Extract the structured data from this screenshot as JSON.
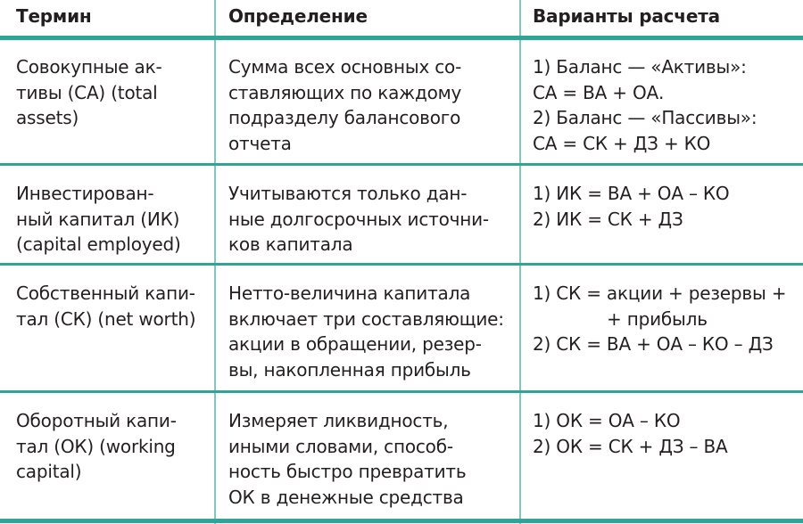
{
  "table": {
    "header": [
      "Термин",
      "Определение",
      "Варианты расчета"
    ],
    "rows": [
      [
        [
          "Совокупные ак-",
          "тивы (СА) (total",
          "assets)"
        ],
        [
          "Сумма всех основных со-",
          "ставляющих по каждому",
          "подразделу балансового",
          "отчета"
        ],
        [
          "1) Баланс — «Активы»:",
          "СА = ВА + ОА.",
          "2) Баланс — «Пассивы»:",
          "СА = СК + ДЗ + КО"
        ]
      ],
      [
        [
          "Инвестирован-",
          "ный капитал (ИК)",
          "(capital employed)"
        ],
        [
          "Учитываются только дан-",
          "ные долгосрочных источни-",
          "ков капитала"
        ],
        [
          "1) ИК = ВА + ОА – КО",
          "2) ИК = СК + ДЗ"
        ]
      ],
      [
        [
          "Собственный капи-",
          "тал (СК) (net worth)"
        ],
        [
          "Нетто-величина капитала",
          "включает три составляющие:",
          "акции в обращении, резер-",
          "вы, накопленная прибыль"
        ],
        [
          "1) СК = акции + резервы +",
          "+ прибыль",
          "2) СК = ВА + ОА – КО – ДЗ"
        ]
      ],
      [
        [
          "Оборотный капи-",
          "тал (ОК) (working",
          "capital)"
        ],
        [
          "Измеряет ликвидность,",
          "иными словами, способ-",
          "ность быстро превратить",
          "ОК в денежные средства"
        ],
        [
          "1) ОК = ОА – КО",
          "2) ОК = СК + ДЗ – ВА"
        ]
      ]
    ]
  }
}
